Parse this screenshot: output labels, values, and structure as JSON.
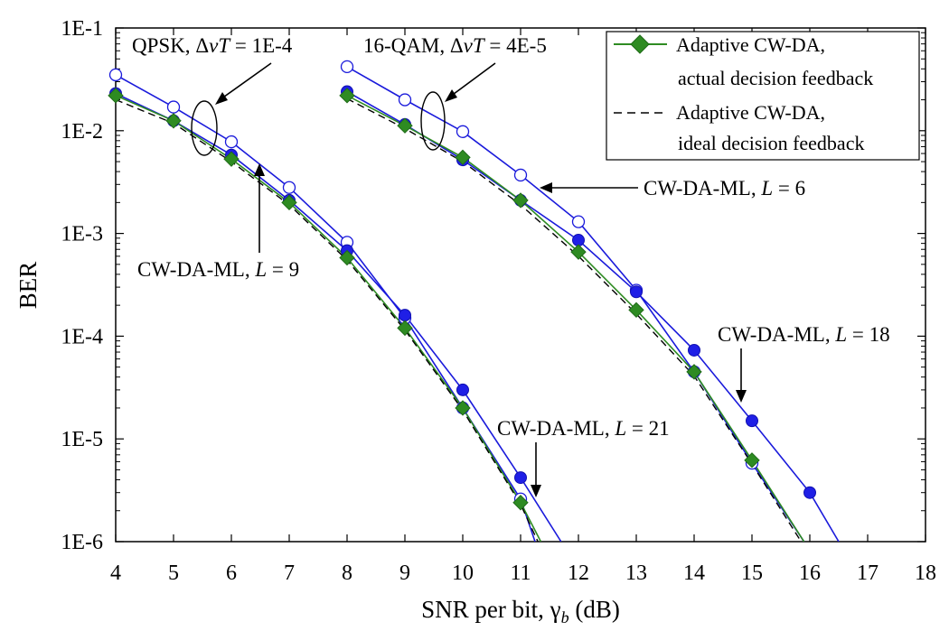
{
  "chart_data": {
    "type": "line",
    "xlabel": "SNR per bit, γ",
    "xlabel_sub": "b",
    "xlabel_tail": " (dB)",
    "ylabel": "BER",
    "xlim": [
      4,
      18
    ],
    "ylim": [
      1e-06,
      0.1
    ],
    "yscale": "log",
    "xticks": [
      4,
      5,
      6,
      7,
      8,
      9,
      10,
      11,
      12,
      13,
      14,
      15,
      16,
      17,
      18
    ],
    "yticks": [
      {
        "value": 0.1,
        "label": "1E-1"
      },
      {
        "value": 0.01,
        "label": "1E-2"
      },
      {
        "value": 0.001,
        "label": "1E-3"
      },
      {
        "value": 0.0001,
        "label": "1E-4"
      },
      {
        "value": 1e-05,
        "label": "1E-5"
      },
      {
        "value": 1e-06,
        "label": "1E-6"
      }
    ],
    "legend": {
      "placement": "top-right",
      "entries": [
        {
          "line1": "Adaptive CW-DA,",
          "line2": "actual decision feedback",
          "style": "green-diamond"
        },
        {
          "line1": "Adaptive CW-DA,",
          "line2": "ideal decision feedback",
          "style": "dashed"
        }
      ]
    },
    "annotations": {
      "qpsk": {
        "prefix": "QPSK, ",
        "sym": "Δ",
        "nu": "ν",
        "T": "T",
        "value": " = 1E-4"
      },
      "qam": {
        "prefix": "16-QAM, ",
        "sym": "Δ",
        "nu": "ν",
        "T": "T",
        "value": " = 4E-5"
      },
      "l6": {
        "prefix": "CW-DA-ML, ",
        "L": "L",
        "value": " = 6"
      },
      "l9": {
        "prefix": "CW-DA-ML, ",
        "L": "L",
        "value": " = 9"
      },
      "l18": {
        "prefix": "CW-DA-ML, ",
        "L": "L",
        "value": " = 18"
      },
      "l21": {
        "prefix": "CW-DA-ML, ",
        "L": "L",
        "value": " = 21"
      }
    },
    "series": [
      {
        "group": "QPSK",
        "style": "open-circle",
        "color": "#1a1adb",
        "x": [
          4,
          5,
          6,
          7,
          8,
          9,
          10,
          11,
          11.25
        ],
        "y": [
          0.035,
          0.017,
          0.0078,
          0.0028,
          0.00082,
          0.00015,
          2e-05,
          2.6e-06,
          1e-06
        ]
      },
      {
        "group": "QPSK",
        "style": "filled-circle",
        "color": "#1a1adb",
        "x": [
          4,
          5,
          6,
          7,
          8,
          9,
          10,
          11,
          11.7
        ],
        "y": [
          0.023,
          0.0125,
          0.0058,
          0.0021,
          0.00068,
          0.00016,
          3e-05,
          4.2e-06,
          1e-06
        ]
      },
      {
        "group": "QPSK",
        "style": "green-diamond",
        "color": "#2e8b22",
        "x": [
          4,
          5,
          6,
          7,
          8,
          9,
          10,
          11,
          11.35
        ],
        "y": [
          0.022,
          0.0125,
          0.0053,
          0.002,
          0.00058,
          0.00012,
          2e-05,
          2.4e-06,
          1e-06
        ]
      },
      {
        "group": "QPSK",
        "style": "dashed",
        "color": "#000000",
        "x": [
          4,
          5,
          6,
          7,
          8,
          9,
          10,
          11,
          11.3
        ],
        "y": [
          0.02,
          0.0118,
          0.005,
          0.0019,
          0.00055,
          0.000115,
          1.9e-05,
          2.3e-06,
          1e-06
        ]
      },
      {
        "group": "16-QAM",
        "style": "open-circle",
        "color": "#1a1adb",
        "x": [
          8,
          9,
          10,
          11,
          12,
          13,
          14,
          15,
          15.9
        ],
        "y": [
          0.042,
          0.02,
          0.0098,
          0.0037,
          0.0013,
          0.00028,
          4.5e-05,
          5.8e-06,
          1e-06
        ]
      },
      {
        "group": "16-QAM",
        "style": "filled-circle",
        "color": "#1a1adb",
        "x": [
          8,
          9,
          10,
          11,
          12,
          13,
          14,
          15,
          16,
          16.5
        ],
        "y": [
          0.024,
          0.0115,
          0.0052,
          0.0021,
          0.00086,
          0.00027,
          7.3e-05,
          1.5e-05,
          3e-06,
          1e-06
        ]
      },
      {
        "group": "16-QAM",
        "style": "green-diamond",
        "color": "#2e8b22",
        "x": [
          8,
          9,
          10,
          11,
          12,
          13,
          14,
          15,
          15.9
        ],
        "y": [
          0.022,
          0.0112,
          0.0055,
          0.0021,
          0.00066,
          0.00018,
          4.5e-05,
          6.2e-06,
          1e-06
        ]
      },
      {
        "group": "16-QAM",
        "style": "dashed",
        "color": "#000000",
        "x": [
          8,
          9,
          10,
          11,
          12,
          13,
          14,
          15,
          15.85
        ],
        "y": [
          0.0205,
          0.0105,
          0.005,
          0.0019,
          0.0006,
          0.000165,
          4.1e-05,
          5.7e-06,
          1e-06
        ]
      }
    ]
  }
}
